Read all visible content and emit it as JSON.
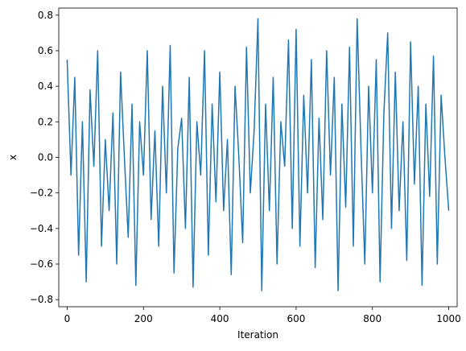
{
  "chart_data": {
    "type": "line",
    "title": "",
    "xlabel": "Iteration",
    "ylabel": "x",
    "xlim": [
      -22,
      1022
    ],
    "ylim": [
      -0.84,
      0.84
    ],
    "xticks": [
      0,
      200,
      400,
      600,
      800,
      1000
    ],
    "xtick_labels": [
      "0",
      "200",
      "400",
      "600",
      "800",
      "1000"
    ],
    "yticks": [
      -0.8,
      -0.6,
      -0.4,
      -0.2,
      0.0,
      0.2,
      0.4,
      0.6,
      0.8
    ],
    "ytick_labels": [
      "−0.8",
      "−0.6",
      "−0.4",
      "−0.2",
      "0.0",
      "0.2",
      "0.4",
      "0.6",
      "0.8"
    ],
    "grid": false,
    "legend": "none",
    "series": [
      {
        "color": "#1f77b4",
        "x_start": 0,
        "x_step": 10,
        "values": [
          0.55,
          -0.1,
          0.45,
          -0.55,
          0.2,
          -0.7,
          0.38,
          -0.05,
          0.6,
          -0.5,
          0.1,
          -0.3,
          0.25,
          -0.6,
          0.48,
          0.0,
          -0.45,
          0.3,
          -0.72,
          0.2,
          -0.1,
          0.6,
          -0.35,
          0.15,
          -0.5,
          0.4,
          -0.2,
          0.63,
          -0.65,
          0.05,
          0.22,
          -0.4,
          0.45,
          -0.73,
          0.2,
          -0.1,
          0.6,
          -0.55,
          0.3,
          -0.25,
          0.48,
          -0.3,
          0.1,
          -0.66,
          0.4,
          0.0,
          -0.48,
          0.62,
          -0.2,
          0.15,
          0.78,
          -0.75,
          0.3,
          -0.3,
          0.45,
          -0.6,
          0.2,
          -0.05,
          0.66,
          -0.4,
          0.72,
          -0.5,
          0.35,
          -0.2,
          0.55,
          -0.62,
          0.22,
          -0.35,
          0.6,
          -0.1,
          0.45,
          -0.75,
          0.3,
          -0.28,
          0.62,
          -0.5,
          0.78,
          0.05,
          -0.6,
          0.4,
          -0.2,
          0.55,
          -0.7,
          0.25,
          0.7,
          -0.4,
          0.48,
          -0.3,
          0.2,
          -0.58,
          0.65,
          -0.15,
          0.4,
          -0.72,
          0.3,
          -0.22,
          0.57,
          -0.6,
          0.35,
          0.0,
          -0.3
        ]
      }
    ]
  }
}
